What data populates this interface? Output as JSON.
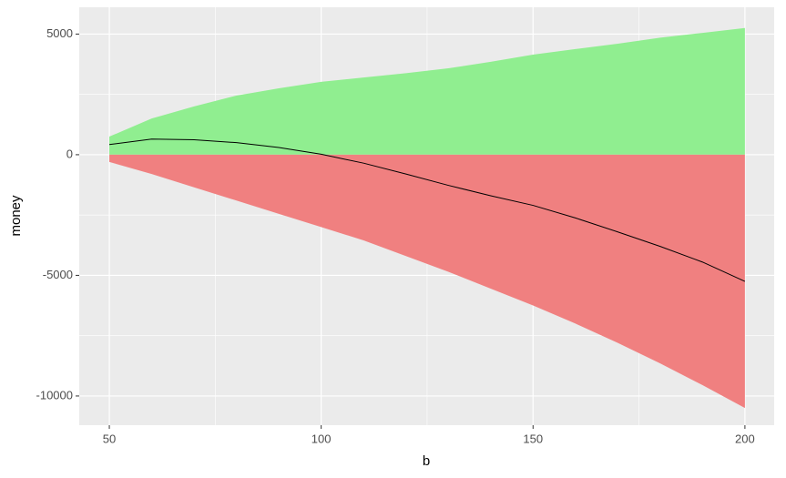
{
  "chart_data": {
    "type": "area",
    "x": [
      50,
      60,
      70,
      80,
      90,
      100,
      110,
      120,
      130,
      140,
      150,
      160,
      170,
      180,
      190,
      200
    ],
    "series": [
      {
        "color": "#90ee90",
        "fill": true,
        "values": [
          750,
          1500,
          2000,
          2450,
          2750,
          3020,
          3200,
          3380,
          3580,
          3850,
          4150,
          4380,
          4600,
          4850,
          5050,
          5250
        ]
      },
      {
        "color": "#f08080",
        "fill": true,
        "values": [
          -300,
          -800,
          -1350,
          -1900,
          -2450,
          -3000,
          -3550,
          -4200,
          -4850,
          -5550,
          -6250,
          -7000,
          -7800,
          -8650,
          -9550,
          -10500
        ]
      },
      {
        "color": "#000000",
        "fill": false,
        "values": [
          420,
          650,
          620,
          500,
          300,
          20,
          -350,
          -800,
          -1270,
          -1700,
          -2100,
          -2620,
          -3200,
          -3800,
          -4450,
          -5250
        ]
      }
    ],
    "xlabel": "b",
    "ylabel": "money",
    "xlim": [
      42.9,
      206.9
    ],
    "xticks": [
      50,
      100,
      150,
      200
    ],
    "x_minor_breaks": [
      75,
      125,
      175
    ],
    "ylim": [
      -11210,
      6110
    ],
    "yticks": [
      -10000,
      -5000,
      0,
      5000
    ],
    "y_minor_breaks": [
      -7500,
      -2500,
      2500
    ],
    "grid": true
  }
}
